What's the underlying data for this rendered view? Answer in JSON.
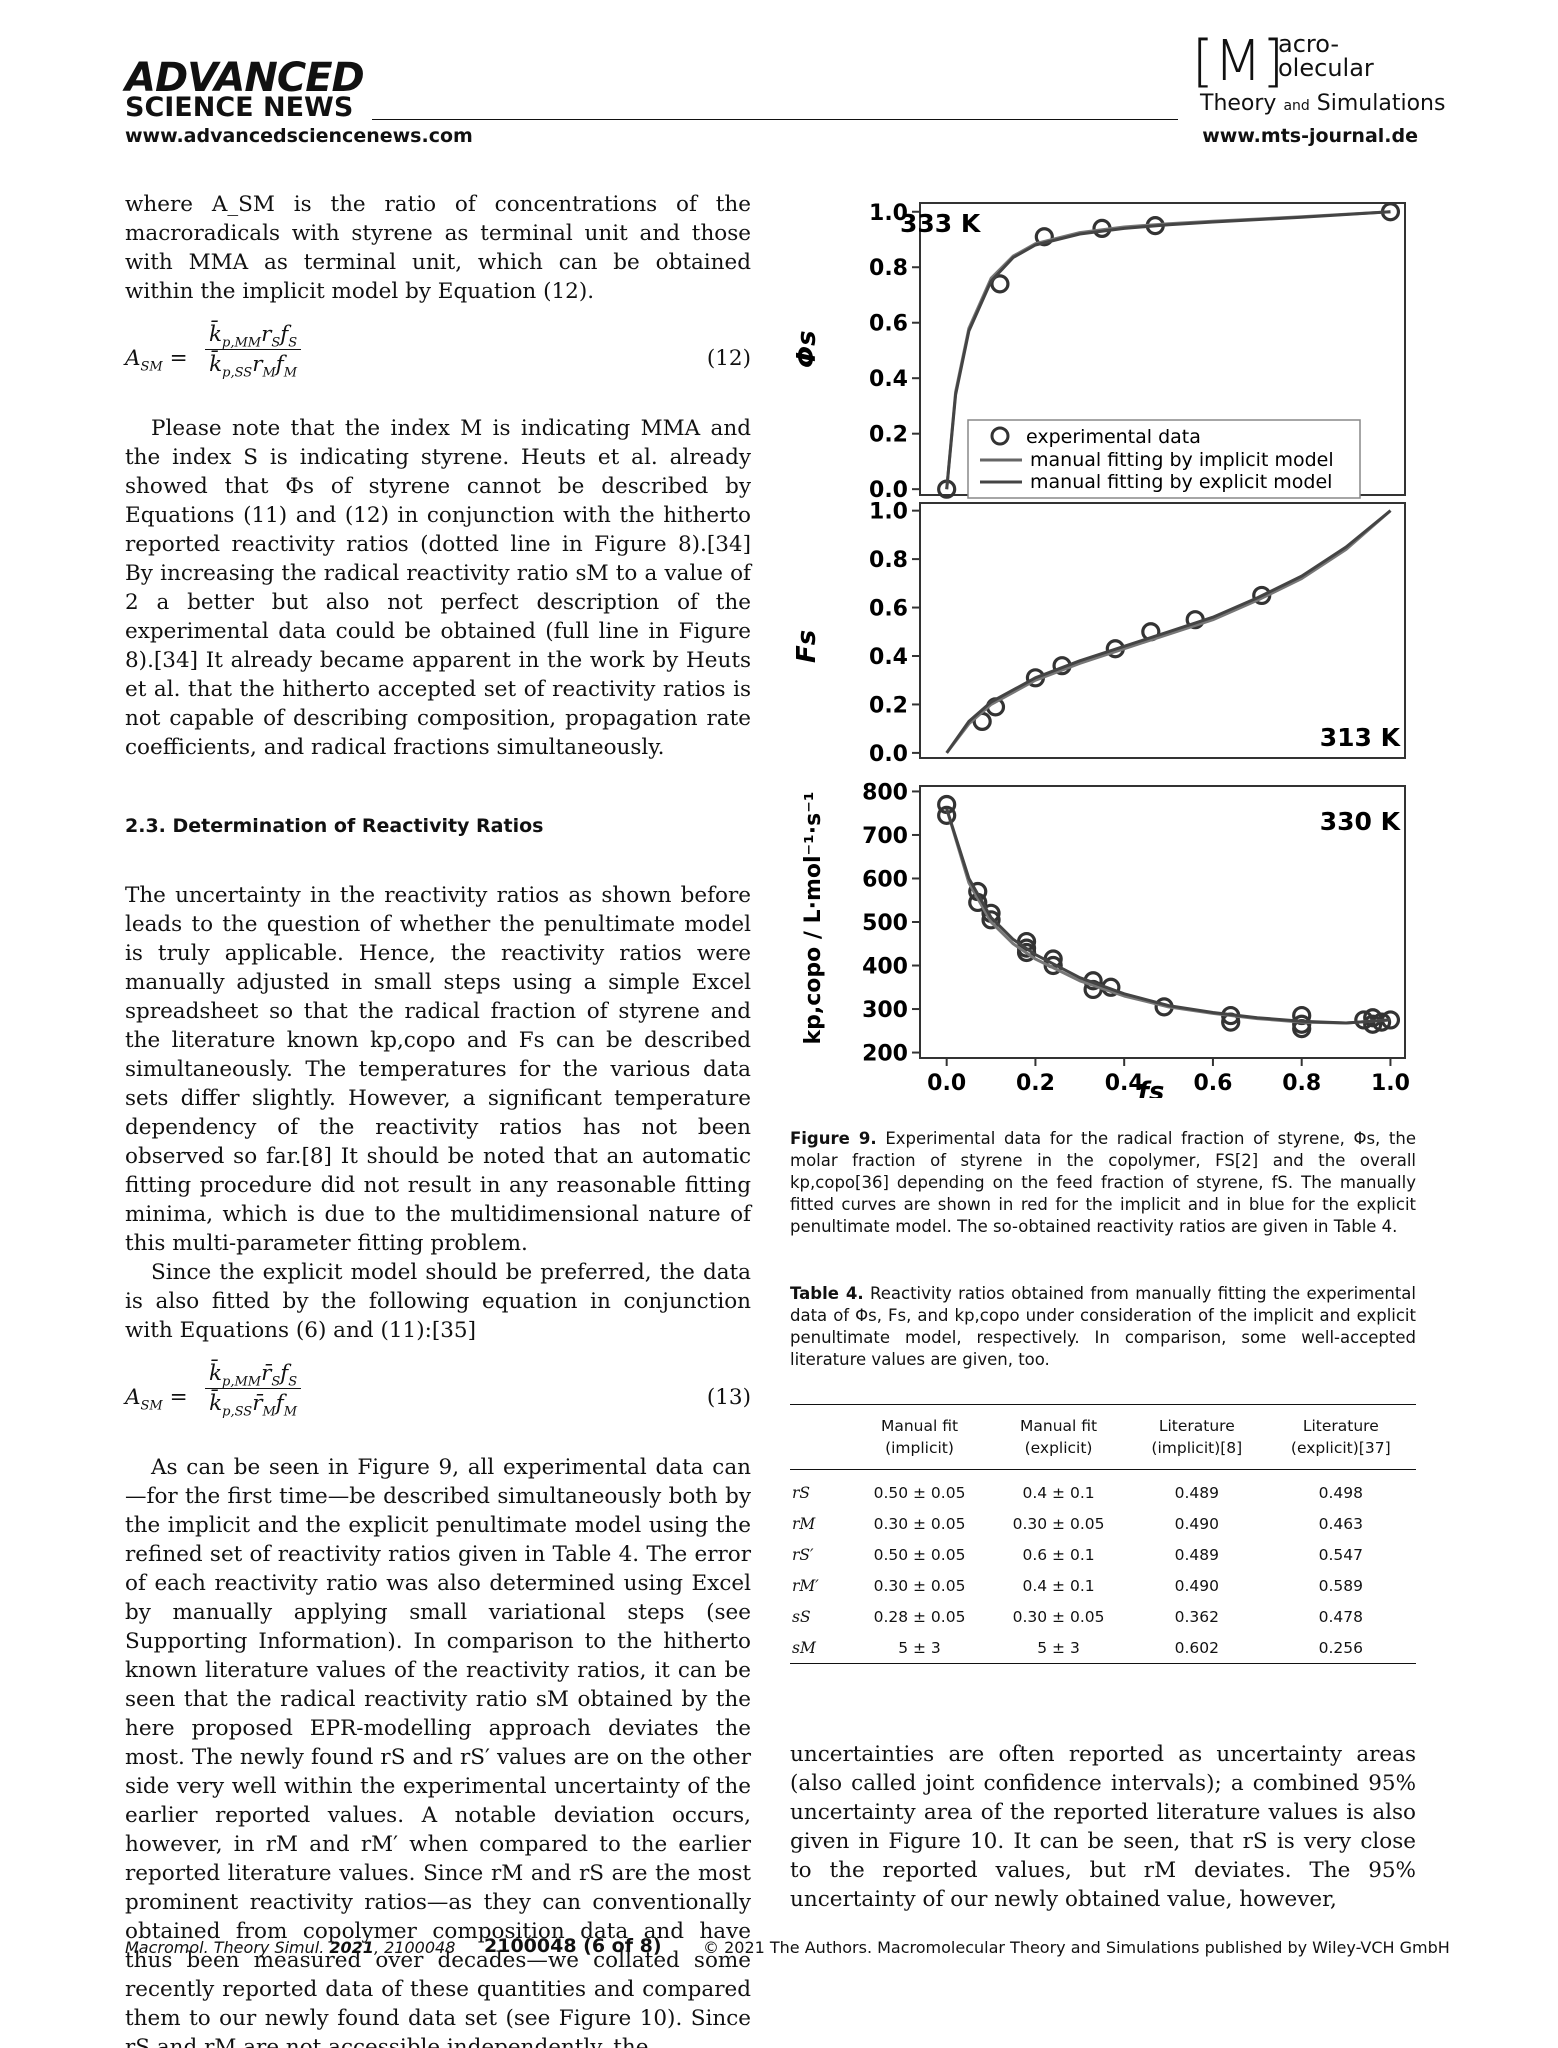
{
  "header": {
    "left_logo_top": "ADVANCED",
    "left_logo_bottom": "SCIENCE NEWS",
    "left_url": "www.advancedsciencenews.com",
    "right_logo_m": "[M]",
    "right_logo_line1": "acro-",
    "right_logo_line2": "olecular",
    "right_logo_theory": "Theory",
    "right_logo_and": "and",
    "right_logo_sim": "Simulations",
    "right_url": "www.mts-journal.de"
  },
  "left": {
    "p1": "where A_SM is the ratio of concentrations of the macroradicals with styrene as terminal unit and those with MMA as terminal unit, which can be obtained within the implicit model by Equation (12).",
    "eq12_no": "(12)",
    "p2": "Please note that the index M is indicating MMA and the index S is indicating styrene. Heuts et al. already showed that Φs of styrene cannot be described by Equations (11) and (12) in conjunction with the hitherto reported reactivity ratios (dotted line in Figure 8).[34] By increasing the radical reactivity ratio sM to a value of 2 a better but also not perfect description of the experimental data could be obtained (full line in Figure 8).[34] It already became apparent in the work by Heuts et al. that the hitherto accepted set of reactivity ratios is not capable of describing composition, propagation rate coefficients, and radical fractions simultaneously.",
    "section": "2.3. Determination of Reactivity Ratios",
    "p3": "The uncertainty in the reactivity ratios as shown before leads to the question of whether the penultimate model is truly applicable. Hence, the reactivity ratios were manually adjusted in small steps using a simple Excel spreadsheet so that the radical fraction of styrene and the literature known kp,copo and Fs can be described simultaneously. The temperatures for the various data sets differ slightly. However, a significant temperature dependency of the reactivity ratios has not been observed so far.[8] It should be noted that an automatic fitting procedure did not result in any reasonable fitting minima, which is due to the multidimensional nature of this multi-parameter fitting problem.",
    "p4": "Since the explicit model should be preferred, the data is also fitted by the following equation in conjunction with Equations (6) and (11):[35]",
    "eq13_no": "(13)",
    "p5": "As can be seen in Figure 9, all experimental data can—for the first time—be described simultaneously both by the implicit and the explicit penultimate model using the refined set of reactivity ratios given in Table 4. The error of each reactivity ratio was also determined using Excel by manually applying small variational steps (see Supporting Information). In comparison to the hitherto known literature values of the reactivity ratios, it can be seen that the radical reactivity ratio sM obtained by the here proposed EPR-modelling approach deviates the most. The newly found rS and rS′ values are on the other side very well within the experimental uncertainty of the earlier reported values. A notable deviation occurs, however, in rM and rM′ when compared to the earlier reported literature values. Since rM and rS are the most prominent reactivity ratios—as they can conventionally obtained from copolymer composition data and have thus been measured over decades—we collated some recently reported data of these quantities and compared them to our newly found data set (see Figure 10). Since rS and rM are not accessible independently, the"
  },
  "figure": {
    "panel1_label": "333 K",
    "panel2_label": "313 K",
    "panel3_label": "330 K",
    "legend": [
      "experimental data",
      "manual fitting by implicit model",
      "manual fitting by explicit model"
    ],
    "y1_label": "Φs",
    "y2_label": "Fs",
    "y3_label": "kp,copo / L·mol⁻¹·s⁻¹",
    "x_label": "fs",
    "caption_label": "Figure 9.",
    "caption": "Experimental data for the radical fraction of styrene, Φs, the molar fraction of styrene in the copolymer, FS[2] and the overall kp,copo[36] depending on the feed fraction of styrene, fS. The manually fitted curves are shown in red for the implicit and in blue for the explicit penultimate model. The so-obtained reactivity ratios are given in Table 4."
  },
  "chart_data": [
    {
      "type": "scatter",
      "title": "333 K",
      "xlabel": "",
      "ylabel": "Φs",
      "xlim": [
        0,
        1.0
      ],
      "ylim": [
        0,
        1.0
      ],
      "x_ticks": [],
      "y_ticks": [
        "0.0",
        "0.2",
        "0.4",
        "0.6",
        "0.8",
        "1.0"
      ],
      "series": [
        {
          "name": "experimental data",
          "x": [
            0.0,
            0.12,
            0.22,
            0.35,
            0.47,
            1.0
          ],
          "y": [
            0.0,
            0.74,
            0.91,
            0.94,
            0.95,
            1.0
          ]
        },
        {
          "name": "manual fitting by implicit model",
          "x": [
            0.0,
            0.02,
            0.05,
            0.1,
            0.15,
            0.2,
            0.3,
            0.4,
            0.5,
            0.6,
            0.8,
            1.0
          ],
          "y": [
            0.0,
            0.35,
            0.58,
            0.76,
            0.84,
            0.885,
            0.925,
            0.945,
            0.957,
            0.966,
            0.982,
            1.0
          ]
        },
        {
          "name": "manual fitting by explicit model",
          "x": [
            0.0,
            0.02,
            0.05,
            0.1,
            0.15,
            0.2,
            0.3,
            0.4,
            0.5,
            0.6,
            0.8,
            1.0
          ],
          "y": [
            0.0,
            0.34,
            0.57,
            0.75,
            0.835,
            0.88,
            0.92,
            0.94,
            0.953,
            0.963,
            0.98,
            1.0
          ]
        }
      ]
    },
    {
      "type": "scatter",
      "title": "313 K",
      "xlabel": "",
      "ylabel": "Fs",
      "xlim": [
        0,
        1.0
      ],
      "ylim": [
        0,
        1.0
      ],
      "y_ticks": [
        "0.0",
        "0.2",
        "0.4",
        "0.6",
        "0.8",
        "1.0"
      ],
      "series": [
        {
          "name": "experimental data",
          "x": [
            0.08,
            0.11,
            0.2,
            0.26,
            0.38,
            0.46,
            0.56,
            0.71
          ],
          "y": [
            0.13,
            0.19,
            0.31,
            0.36,
            0.43,
            0.5,
            0.55,
            0.65
          ]
        },
        {
          "name": "manual fitting by implicit model",
          "x": [
            0.0,
            0.05,
            0.1,
            0.2,
            0.3,
            0.4,
            0.5,
            0.6,
            0.7,
            0.8,
            0.9,
            1.0
          ],
          "y": [
            0.0,
            0.12,
            0.2,
            0.3,
            0.37,
            0.43,
            0.49,
            0.55,
            0.63,
            0.72,
            0.84,
            1.0
          ]
        },
        {
          "name": "manual fitting by explicit model",
          "x": [
            0.0,
            0.05,
            0.1,
            0.2,
            0.3,
            0.4,
            0.5,
            0.6,
            0.7,
            0.8,
            0.9,
            1.0
          ],
          "y": [
            0.0,
            0.13,
            0.21,
            0.31,
            0.38,
            0.44,
            0.5,
            0.56,
            0.64,
            0.73,
            0.85,
            1.0
          ]
        }
      ]
    },
    {
      "type": "scatter",
      "title": "330 K",
      "xlabel": "fs",
      "ylabel": "kp,copo / L·mol⁻¹·s⁻¹",
      "xlim": [
        0,
        1.0
      ],
      "ylim": [
        200,
        800
      ],
      "x_ticks": [
        "0.0",
        "0.2",
        "0.4",
        "0.6",
        "0.8",
        "1.0"
      ],
      "y_ticks": [
        "200",
        "300",
        "400",
        "500",
        "600",
        "700",
        "800"
      ],
      "series": [
        {
          "name": "experimental data",
          "x": [
            0.0,
            0.0,
            0.07,
            0.07,
            0.1,
            0.1,
            0.18,
            0.18,
            0.18,
            0.24,
            0.24,
            0.33,
            0.33,
            0.37,
            0.49,
            0.64,
            0.64,
            0.8,
            0.8,
            0.8,
            0.94,
            0.96,
            0.96,
            0.98,
            1.0
          ],
          "y": [
            770,
            745,
            570,
            545,
            520,
            505,
            455,
            440,
            430,
            415,
            400,
            365,
            345,
            350,
            305,
            285,
            270,
            285,
            265,
            255,
            275,
            280,
            265,
            270,
            275
          ]
        },
        {
          "name": "manual fitting by implicit model",
          "x": [
            0.0,
            0.05,
            0.1,
            0.15,
            0.2,
            0.3,
            0.4,
            0.5,
            0.6,
            0.7,
            0.8,
            0.9,
            1.0
          ],
          "y": [
            760,
            590,
            500,
            450,
            415,
            365,
            330,
            305,
            290,
            278,
            270,
            268,
            275
          ]
        },
        {
          "name": "manual fitting by explicit model",
          "x": [
            0.0,
            0.05,
            0.1,
            0.15,
            0.2,
            0.3,
            0.4,
            0.5,
            0.6,
            0.7,
            0.8,
            0.9,
            1.0
          ],
          "y": [
            760,
            600,
            510,
            460,
            425,
            372,
            335,
            308,
            292,
            280,
            272,
            268,
            275
          ]
        }
      ]
    }
  ],
  "table": {
    "caption_label": "Table 4.",
    "caption": "Reactivity ratios obtained from manually fitting the experimental data of Φs, Fs, and kp,copo under consideration of the implicit and explicit penultimate model, respectively. In comparison, some well-accepted literature values are given, too.",
    "headers": [
      {
        "l1": "Manual fit",
        "l2": "(implicit)"
      },
      {
        "l1": "Manual fit",
        "l2": "(explicit)"
      },
      {
        "l1": "Literature",
        "l2": "(implicit)[8]"
      },
      {
        "l1": "Literature",
        "l2": "(explicit)[37]"
      }
    ],
    "rows": [
      {
        "label": "rS",
        "c": [
          "0.50 ± 0.05",
          "0.4 ± 0.1",
          "0.489",
          "0.498"
        ]
      },
      {
        "label": "rM",
        "c": [
          "0.30 ± 0.05",
          "0.30 ± 0.05",
          "0.490",
          "0.463"
        ]
      },
      {
        "label": "rS′",
        "c": [
          "0.50 ± 0.05",
          "0.6 ± 0.1",
          "0.489",
          "0.547"
        ]
      },
      {
        "label": "rM′",
        "c": [
          "0.30 ± 0.05",
          "0.4 ± 0.1",
          "0.490",
          "0.589"
        ]
      },
      {
        "label": "sS",
        "c": [
          "0.28 ± 0.05",
          "0.30 ± 0.05",
          "0.362",
          "0.478"
        ]
      },
      {
        "label": "sM",
        "c": [
          "5 ± 3",
          "5 ± 3",
          "0.602",
          "0.256"
        ]
      }
    ]
  },
  "right": {
    "p1": "uncertainties are often reported as uncertainty areas (also called joint confidence intervals); a combined 95% uncertainty area of the reported literature values is also given in Figure 10. It can be seen, that rS is very close to the reported values, but rM deviates. The 95% uncertainty of our newly obtained value, however,"
  },
  "footer": {
    "journal": "Macromol. Theory Simul.",
    "year": "2021",
    "article": ", 2100048",
    "page": "2100048 (6 of 8)",
    "copyright": "© 2021 The Authors. Macromolecular Theory and Simulations published by Wiley-VCH GmbH"
  }
}
